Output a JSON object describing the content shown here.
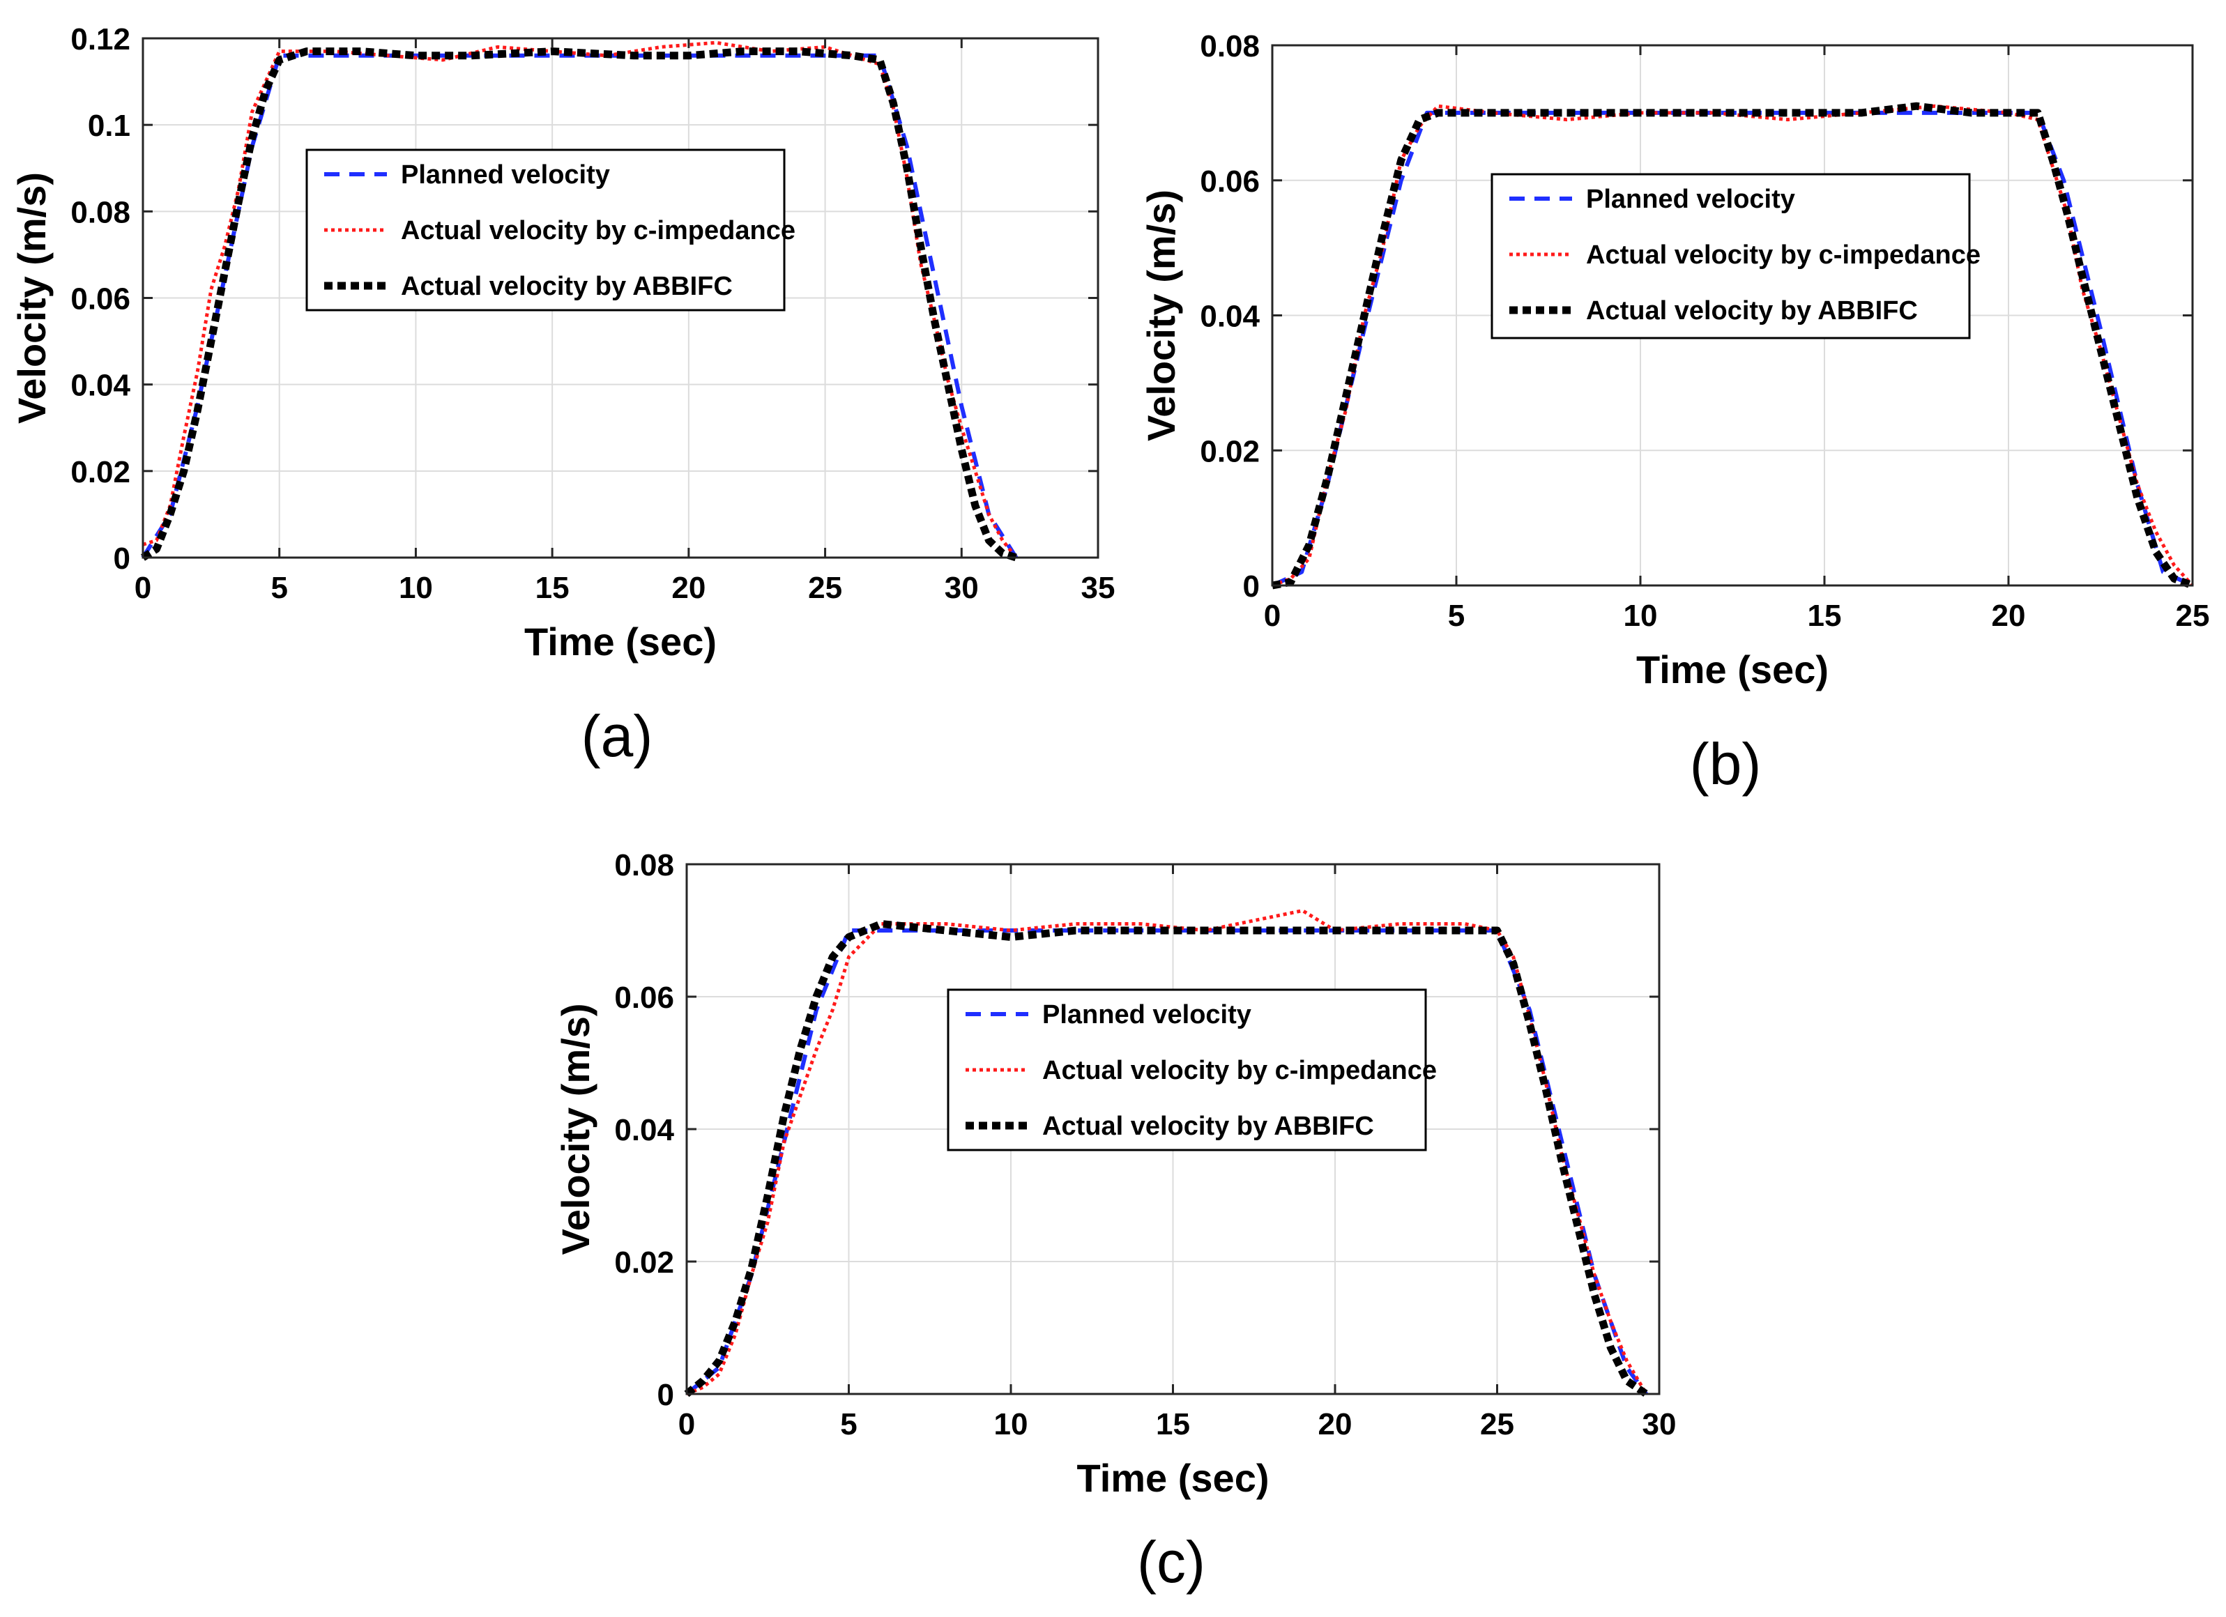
{
  "figure": {
    "colors": {
      "planned": "#1f2fff",
      "cimp": "#ff1a1a",
      "abbifc": "#000000",
      "grid": "#dcdcdc"
    }
  },
  "chart_data": [
    {
      "id": "a",
      "type": "line",
      "caption": "(a)",
      "xlabel": "Time (sec)",
      "ylabel": "Velocity (m/s)",
      "xlim": [
        0,
        35
      ],
      "ylim": [
        0,
        0.12
      ],
      "xticks": [
        0,
        5,
        10,
        15,
        20,
        25,
        30,
        35
      ],
      "yticks": [
        0,
        0.02,
        0.04,
        0.06,
        0.08,
        0.1,
        0.12
      ],
      "yticklabels": [
        "0",
        "0.02",
        "0.04",
        "0.06",
        "0.08",
        "0.1",
        "0.12"
      ],
      "grid": true,
      "legend": {
        "position": "upper-center",
        "entries": [
          "Planned velocity",
          "Actual velocity by c-impedance",
          "Actual velocity by ABBIFC"
        ]
      },
      "series": [
        {
          "name": "Planned velocity",
          "style": "dashed",
          "color": "#1f2fff",
          "x": [
            0,
            1,
            2,
            3,
            4,
            5,
            27,
            28,
            29,
            30,
            31,
            32
          ],
          "y": [
            0,
            0.01,
            0.035,
            0.065,
            0.095,
            0.116,
            0.116,
            0.095,
            0.065,
            0.035,
            0.01,
            0
          ]
        },
        {
          "name": "Actual velocity by c-impedance",
          "style": "dotted",
          "color": "#ff1a1a",
          "x": [
            0,
            0.5,
            1,
            1.5,
            2,
            2.5,
            3,
            3.5,
            4,
            4.5,
            5,
            7,
            9,
            11,
            13,
            15,
            17,
            19,
            21,
            23,
            25,
            27,
            27.5,
            28,
            28.5,
            29,
            29.5,
            30,
            30.5,
            31,
            31.5,
            32
          ],
          "y": [
            0.003,
            0.004,
            0.012,
            0.028,
            0.043,
            0.062,
            0.072,
            0.085,
            0.103,
            0.11,
            0.117,
            0.117,
            0.116,
            0.115,
            0.118,
            0.117,
            0.116,
            0.118,
            0.119,
            0.117,
            0.118,
            0.114,
            0.104,
            0.088,
            0.068,
            0.055,
            0.041,
            0.03,
            0.02,
            0.01,
            0.004,
            0
          ]
        },
        {
          "name": "Actual velocity by ABBIFC",
          "style": "dotted-thick",
          "color": "#000000",
          "x": [
            0,
            0.5,
            1,
            1.5,
            2,
            2.5,
            3,
            3.5,
            4,
            4.5,
            5,
            6,
            8,
            10,
            12,
            15,
            18,
            20,
            22,
            24,
            26,
            27,
            27.5,
            28,
            28.5,
            29,
            29.5,
            30,
            30.5,
            31,
            31.5,
            32
          ],
          "y": [
            0,
            0.002,
            0.01,
            0.02,
            0.034,
            0.05,
            0.066,
            0.082,
            0.097,
            0.108,
            0.115,
            0.117,
            0.117,
            0.116,
            0.116,
            0.117,
            0.116,
            0.116,
            0.117,
            0.117,
            0.116,
            0.115,
            0.105,
            0.09,
            0.072,
            0.055,
            0.04,
            0.025,
            0.012,
            0.004,
            0.001,
            0
          ]
        }
      ]
    },
    {
      "id": "b",
      "type": "line",
      "caption": "(b)",
      "xlabel": "Time (sec)",
      "ylabel": "Velocity (m/s)",
      "xlim": [
        0,
        25
      ],
      "ylim": [
        0,
        0.08
      ],
      "xticks": [
        0,
        5,
        10,
        15,
        20,
        25
      ],
      "yticks": [
        0,
        0.02,
        0.04,
        0.06,
        0.08
      ],
      "yticklabels": [
        "0",
        "0.02",
        "0.04",
        "0.06",
        "0.08"
      ],
      "grid": true,
      "legend": {
        "position": "upper-center",
        "entries": [
          "Planned velocity",
          "Actual velocity by c-impedance",
          "Actual velocity by ABBIFC"
        ]
      },
      "series": [
        {
          "name": "Planned velocity",
          "style": "dashed",
          "color": "#1f2fff",
          "x": [
            0,
            0.8,
            1.5,
            2.5,
            3.5,
            4.2,
            20.8,
            21.5,
            22.5,
            23.5,
            24.2,
            25
          ],
          "y": [
            0,
            0.002,
            0.015,
            0.038,
            0.06,
            0.07,
            0.07,
            0.06,
            0.038,
            0.015,
            0.002,
            0
          ]
        },
        {
          "name": "Actual velocity by c-impedance",
          "style": "dotted",
          "color": "#ff1a1a",
          "x": [
            0,
            0.5,
            1,
            1.5,
            2,
            2.5,
            3,
            3.5,
            4,
            4.5,
            6,
            8,
            10,
            12,
            14,
            16,
            18,
            20,
            20.8,
            21.2,
            21.6,
            22,
            22.5,
            23,
            23.5,
            24,
            24.5,
            25
          ],
          "y": [
            0,
            0.001,
            0.004,
            0.016,
            0.026,
            0.04,
            0.05,
            0.063,
            0.068,
            0.071,
            0.07,
            0.069,
            0.07,
            0.07,
            0.069,
            0.07,
            0.071,
            0.07,
            0.069,
            0.062,
            0.055,
            0.044,
            0.035,
            0.025,
            0.015,
            0.008,
            0.003,
            0
          ]
        },
        {
          "name": "Actual velocity by ABBIFC",
          "style": "dotted-thick",
          "color": "#000000",
          "x": [
            0,
            0.5,
            1,
            1.5,
            2,
            2.5,
            3,
            3.5,
            4,
            4.5,
            6,
            8,
            10,
            12,
            14,
            16,
            17.5,
            19,
            20.8,
            21.2,
            21.6,
            22,
            22.5,
            23,
            23.5,
            24,
            24.5,
            25
          ],
          "y": [
            0,
            0.0005,
            0.006,
            0.016,
            0.028,
            0.04,
            0.052,
            0.063,
            0.069,
            0.07,
            0.07,
            0.07,
            0.07,
            0.07,
            0.07,
            0.07,
            0.071,
            0.07,
            0.07,
            0.063,
            0.055,
            0.046,
            0.035,
            0.024,
            0.013,
            0.005,
            0.001,
            0
          ]
        }
      ]
    },
    {
      "id": "c",
      "type": "line",
      "caption": "(c)",
      "xlabel": "Time (sec)",
      "ylabel": "Velocity (m/s)",
      "xlim": [
        0,
        30
      ],
      "ylim": [
        0,
        0.08
      ],
      "xticks": [
        0,
        5,
        10,
        15,
        20,
        25,
        30
      ],
      "yticks": [
        0,
        0.02,
        0.04,
        0.06,
        0.08
      ],
      "yticklabels": [
        "0",
        "0.02",
        "0.04",
        "0.06",
        "0.08"
      ],
      "grid": true,
      "legend": {
        "position": "upper-center",
        "entries": [
          "Planned velocity",
          "Actual velocity by c-impedance",
          "Actual velocity by ABBIFC"
        ]
      },
      "series": [
        {
          "name": "Planned velocity",
          "style": "dashed",
          "color": "#1f2fff",
          "x": [
            0,
            1,
            2,
            3,
            4,
            5,
            25,
            26,
            27,
            28,
            29,
            29.6
          ],
          "y": [
            0,
            0.004,
            0.018,
            0.038,
            0.058,
            0.07,
            0.07,
            0.058,
            0.038,
            0.018,
            0.004,
            0
          ]
        },
        {
          "name": "Actual velocity by c-impedance",
          "style": "dotted",
          "color": "#ff1a1a",
          "x": [
            0,
            0.5,
            1,
            1.5,
            2,
            2.5,
            3,
            3.5,
            4,
            4.5,
            5,
            6,
            8,
            10,
            12,
            14,
            16,
            18,
            19,
            20,
            22,
            24,
            25,
            25.5,
            26,
            26.5,
            27,
            27.5,
            28,
            28.5,
            29,
            29.6
          ],
          "y": [
            0,
            0.001,
            0.003,
            0.009,
            0.018,
            0.026,
            0.038,
            0.045,
            0.052,
            0.058,
            0.066,
            0.071,
            0.071,
            0.07,
            0.071,
            0.071,
            0.07,
            0.072,
            0.073,
            0.07,
            0.071,
            0.071,
            0.07,
            0.066,
            0.057,
            0.047,
            0.036,
            0.027,
            0.018,
            0.011,
            0.005,
            0
          ]
        },
        {
          "name": "Actual velocity by ABBIFC",
          "style": "dotted-thick",
          "color": "#000000",
          "x": [
            0,
            0.5,
            1,
            1.5,
            2,
            2.5,
            3,
            3.5,
            4,
            4.5,
            5,
            6,
            8,
            10,
            12,
            14,
            16,
            18,
            20,
            22,
            24,
            25,
            25.5,
            26,
            26.5,
            27,
            27.5,
            28,
            28.5,
            29,
            29.6
          ],
          "y": [
            0,
            0.002,
            0.005,
            0.011,
            0.019,
            0.03,
            0.042,
            0.052,
            0.06,
            0.066,
            0.069,
            0.071,
            0.07,
            0.069,
            0.07,
            0.07,
            0.07,
            0.07,
            0.07,
            0.07,
            0.07,
            0.07,
            0.065,
            0.056,
            0.046,
            0.035,
            0.025,
            0.015,
            0.007,
            0.002,
            0
          ]
        }
      ]
    }
  ]
}
